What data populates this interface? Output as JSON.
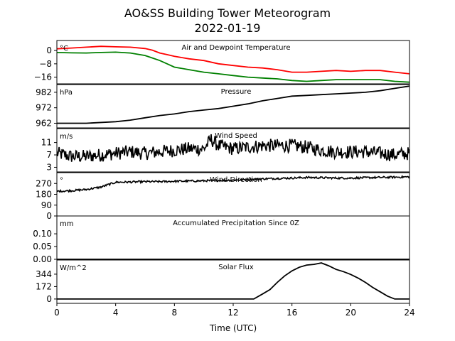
{
  "title": "AO&SS Building Tower Meteorogram",
  "subtitle": "2022-01-19",
  "xlabel": "Time (UTC)",
  "xticks": [
    "0",
    "4",
    "8",
    "12",
    "16",
    "20",
    "24"
  ],
  "chart_data": [
    {
      "type": "line",
      "title": "Air and Dewpoint Temperature",
      "unit": "°C",
      "yticks": [
        "0",
        "−8",
        "−16"
      ],
      "ytick_values": [
        0,
        -8,
        -16
      ],
      "ylim": [
        -20,
        6
      ],
      "xlim": [
        0,
        24
      ],
      "series": [
        {
          "color": "#ff0000",
          "x": [
            0,
            1,
            2,
            3,
            4,
            5,
            6,
            6.5,
            7,
            7.5,
            8,
            9,
            10,
            11,
            12,
            13,
            14,
            15,
            16,
            17,
            18,
            19,
            20,
            21,
            22,
            23,
            24
          ],
          "y": [
            1,
            1.5,
            2,
            2.5,
            2.2,
            2,
            1.2,
            0.2,
            -1.5,
            -2.5,
            -3.5,
            -5,
            -6,
            -8,
            -9,
            -10,
            -10.5,
            -11.5,
            -13,
            -13,
            -12.5,
            -12,
            -12.5,
            -12,
            -12,
            -13,
            -14
          ]
        },
        {
          "color": "#008000",
          "x": [
            0,
            1,
            2,
            3,
            4,
            5,
            6,
            6.5,
            7,
            7.5,
            8,
            9,
            10,
            11,
            12,
            13,
            14,
            15,
            16,
            17,
            18,
            19,
            20,
            21,
            22,
            23,
            24
          ],
          "y": [
            -1.2,
            -1.4,
            -1.5,
            -1.2,
            -1,
            -1.5,
            -3,
            -4.5,
            -6,
            -8,
            -10,
            -11.5,
            -13,
            -14,
            -15,
            -16,
            -16.5,
            -17,
            -18,
            -18.5,
            -18,
            -17.5,
            -17.5,
            -17.5,
            -17.5,
            -18.5,
            -19
          ]
        }
      ]
    },
    {
      "type": "line",
      "title": "Pressure",
      "unit": "hPa",
      "yticks": [
        "982",
        "972",
        "962"
      ],
      "ytick_values": [
        982,
        972,
        962
      ],
      "ylim": [
        959,
        987
      ],
      "xlim": [
        0,
        24
      ],
      "series": [
        {
          "color": "#000000",
          "x": [
            0,
            2,
            4,
            5,
            6,
            7,
            8,
            9,
            10,
            11,
            12,
            13,
            14,
            15,
            16,
            17,
            18,
            19,
            20,
            21,
            22,
            23,
            24
          ],
          "y": [
            962,
            962,
            963,
            964,
            965.5,
            967,
            968,
            969.5,
            970.5,
            971.5,
            973,
            974.5,
            976.5,
            978,
            979.5,
            980,
            980.5,
            981,
            981.5,
            982,
            983,
            984.5,
            986
          ]
        }
      ]
    },
    {
      "type": "line",
      "title": "Wind Speed",
      "unit": "m/s",
      "yticks": [
        "11",
        "7",
        "3"
      ],
      "ytick_values": [
        11,
        7,
        3
      ],
      "ylim": [
        1.5,
        15.5
      ],
      "xlim": [
        0,
        24
      ],
      "noisy": true,
      "series": [
        {
          "color": "#000000",
          "x": [
            0,
            1,
            2,
            3,
            4,
            5,
            6,
            7,
            8,
            9,
            10,
            10.5,
            11,
            12,
            13,
            14,
            15,
            16,
            17,
            18,
            19,
            20,
            21,
            22,
            23,
            24
          ],
          "y": [
            7.5,
            6.5,
            6.5,
            7,
            7.5,
            8,
            7.5,
            8,
            8.5,
            9,
            9,
            12,
            10,
            9,
            9.5,
            10,
            10,
            10,
            9.5,
            8.5,
            8,
            8,
            8,
            7.5,
            7,
            7.5
          ]
        }
      ]
    },
    {
      "type": "line",
      "title": "Wind Direction",
      "unit": "°",
      "yticks": [
        "270",
        "180",
        "90",
        "0"
      ],
      "ytick_values": [
        270,
        180,
        90,
        0
      ],
      "ylim": [
        0,
        360
      ],
      "xlim": [
        0,
        24
      ],
      "noisy": true,
      "series": [
        {
          "color": "#000000",
          "x": [
            0,
            1,
            2,
            3,
            3.5,
            4,
            5,
            6,
            7,
            8,
            9,
            10,
            11,
            12,
            13,
            14,
            15,
            16,
            17,
            18,
            19,
            20,
            21,
            22,
            23,
            24
          ],
          "y": [
            205,
            210,
            220,
            240,
            260,
            280,
            282,
            285,
            285,
            288,
            290,
            292,
            295,
            298,
            302,
            308,
            312,
            315,
            320,
            318,
            315,
            315,
            318,
            320,
            322,
            325
          ]
        }
      ]
    },
    {
      "type": "line",
      "title": "Accumulated Precipitation Since 0Z",
      "unit": "mm",
      "yticks": [
        "0.10",
        "0.05",
        "0.00"
      ],
      "ytick_values": [
        0.1,
        0.05,
        0
      ],
      "ylim": [
        0,
        0.17
      ],
      "xlim": [
        0,
        24
      ],
      "series": [
        {
          "color": "#000000",
          "x": [
            0,
            24
          ],
          "y": [
            0,
            0
          ]
        }
      ]
    },
    {
      "type": "line",
      "title": "Solar Flux",
      "unit": "W/m^2",
      "yticks": [
        "344",
        "172",
        "0"
      ],
      "ytick_values": [
        344,
        172,
        0
      ],
      "ylim": [
        -60,
        540
      ],
      "xlim": [
        0,
        24
      ],
      "series": [
        {
          "color": "#000000",
          "x": [
            0,
            13.4,
            14,
            14.5,
            15,
            15.5,
            16,
            16.5,
            17,
            17.5,
            18,
            18.5,
            19,
            19.5,
            20,
            20.5,
            21,
            21.5,
            22,
            22.5,
            23,
            24
          ],
          "y": [
            0,
            0,
            70,
            130,
            230,
            320,
            390,
            440,
            470,
            480,
            500,
            460,
            410,
            380,
            340,
            290,
            230,
            160,
            100,
            40,
            0,
            0
          ]
        }
      ]
    }
  ]
}
